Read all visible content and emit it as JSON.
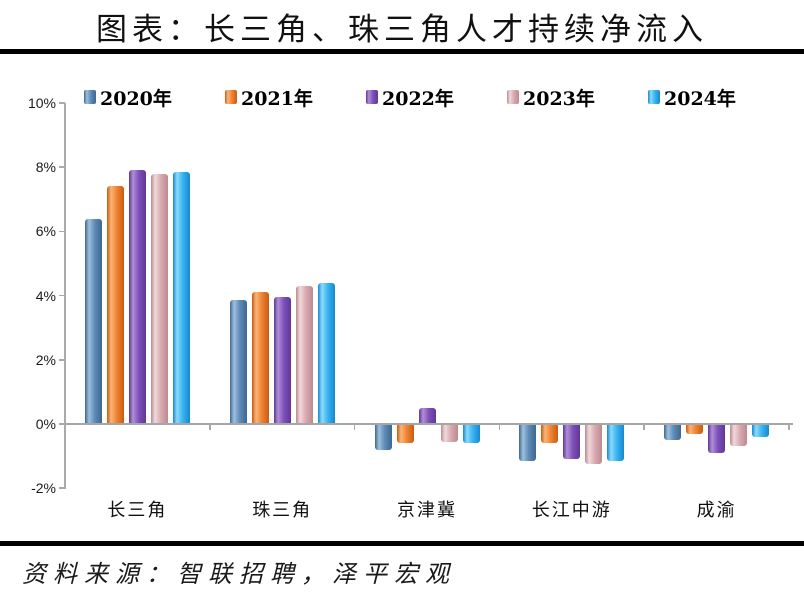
{
  "title": "图表：长三角、珠三角人才持续净流入",
  "source": "资料来源：智联招聘，泽平宏观",
  "chart_data": {
    "type": "bar",
    "title": "图表：长三角、珠三角人才持续净流入",
    "categories": [
      "长三角",
      "珠三角",
      "京津冀",
      "长江中游",
      "成渝"
    ],
    "series": [
      {
        "name": "2020年",
        "values": [
          6.4,
          3.85,
          -0.8,
          -1.15,
          -0.5
        ],
        "color_base": "#5e8ab5",
        "color_light": "#9dc0dd",
        "color_edge": "#3e6791"
      },
      {
        "name": "2021年",
        "values": [
          7.4,
          4.1,
          -0.6,
          -0.6,
          -0.3
        ],
        "color_base": "#ef8233",
        "color_light": "#fbb577",
        "color_edge": "#c85c10"
      },
      {
        "name": "2022年",
        "values": [
          7.9,
          3.95,
          0.5,
          -1.1,
          -0.9
        ],
        "color_base": "#7e50ba",
        "color_light": "#af8fd7",
        "color_edge": "#5f3795"
      },
      {
        "name": "2023年",
        "values": [
          7.8,
          4.3,
          -0.55,
          -1.25,
          -0.7
        ],
        "color_base": "#d9aab0",
        "color_light": "#efd9db",
        "color_edge": "#bb8a92"
      },
      {
        "name": "2024年",
        "values": [
          7.85,
          4.4,
          -0.6,
          -1.15,
          -0.4
        ],
        "color_base": "#38b3f2",
        "color_light": "#8cdbfb",
        "color_edge": "#1788cd"
      }
    ],
    "xlabel": "",
    "ylabel": "",
    "y_ticks": [
      {
        "label": "10%",
        "value": 10
      },
      {
        "label": "8%",
        "value": 8
      },
      {
        "label": "6%",
        "value": 6
      },
      {
        "label": "4%",
        "value": 4
      },
      {
        "label": "2%",
        "value": 2
      },
      {
        "label": "0%",
        "value": 0
      },
      {
        "label": "-2%",
        "value": -2
      }
    ],
    "ylim": [
      -2,
      10
    ],
    "grid": false,
    "legend_position": "top",
    "axis_color": "#a6a6a6"
  }
}
